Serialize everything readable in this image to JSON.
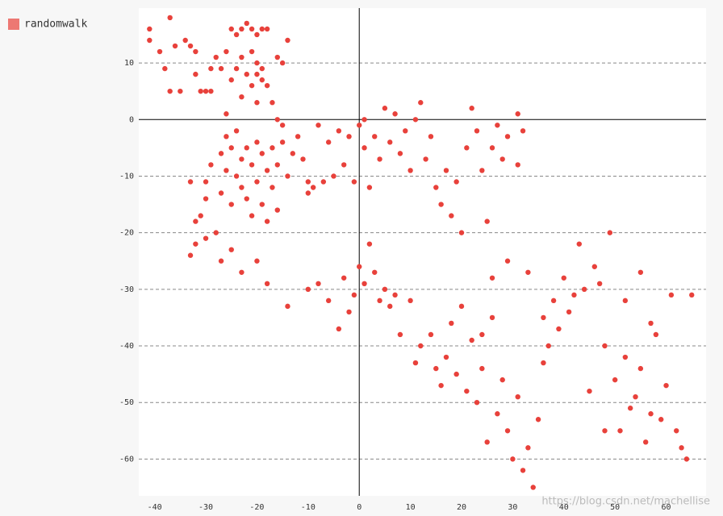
{
  "chart_data": {
    "type": "scatter",
    "watermark": "https://blog.csdn.net/machellise",
    "xlim": [
      -43.1,
      67.8
    ],
    "ylim": [
      -66.5,
      19.7
    ],
    "xticks": [
      -40,
      -30,
      -20,
      -10,
      0,
      10,
      20,
      30,
      40,
      50,
      60
    ],
    "yticks": [
      10,
      0,
      -10,
      -20,
      -30,
      -40,
      -50,
      -60
    ],
    "grid": true,
    "legend": "top-left",
    "x": [
      -41,
      -41,
      -39,
      -38,
      -37,
      -37,
      -36,
      -35,
      -34,
      -33,
      -32,
      -32,
      -31,
      -30,
      -29,
      -29,
      -28,
      -27,
      -26,
      -26,
      -25,
      -25,
      -24,
      -24,
      -23,
      -23,
      -23,
      -22,
      -22,
      -21,
      -21,
      -21,
      -20,
      -20,
      -20,
      -20,
      -19,
      -19,
      -19,
      -18,
      -18,
      -17,
      -16,
      -15,
      -14,
      -16,
      -15,
      -33,
      -32,
      -31,
      -30,
      -30,
      -29,
      -28,
      -27,
      -27,
      -26,
      -26,
      -25,
      -25,
      -24,
      -24,
      -23,
      -23,
      -22,
      -22,
      -21,
      -21,
      -20,
      -20,
      -19,
      -19,
      -18,
      -18,
      -17,
      -17,
      -16,
      -16,
      -15,
      -14,
      -13,
      -12,
      -11,
      -10,
      -10,
      -9,
      -8,
      -7,
      -6,
      -5,
      -4,
      -3,
      -2,
      -1,
      0,
      1,
      1,
      2,
      3,
      4,
      5,
      6,
      7,
      8,
      9,
      10,
      11,
      12,
      13,
      14,
      15,
      16,
      17,
      18,
      19,
      20,
      21,
      22,
      23,
      24,
      25,
      26,
      27,
      28,
      29,
      31,
      31,
      32,
      -33,
      -32,
      -30,
      -27,
      -25,
      -23,
      -20,
      -18,
      -14,
      -10,
      -8,
      -6,
      -4,
      -3,
      -2,
      -1,
      0,
      1,
      2,
      3,
      4,
      5,
      6,
      7,
      8,
      10,
      11,
      12,
      14,
      15,
      16,
      17,
      18,
      19,
      20,
      21,
      22,
      23,
      24,
      25,
      26,
      27,
      28,
      29,
      30,
      31,
      32,
      33,
      34,
      35,
      36,
      37,
      38,
      39,
      40,
      41,
      42,
      43,
      44,
      45,
      46,
      47,
      48,
      49,
      50,
      51,
      52,
      53,
      54,
      55,
      56,
      57,
      58,
      59,
      60,
      61,
      62,
      63,
      64,
      65,
      33,
      36,
      29,
      26,
      24,
      48,
      52,
      55,
      57
    ],
    "series": [
      {
        "name": "randomwalk",
        "color": "#e8413b",
        "values": [
          16,
          14,
          12,
          9,
          18,
          5,
          13,
          5,
          14,
          13,
          12,
          8,
          5,
          5,
          5,
          9,
          11,
          9,
          12,
          1,
          16,
          7,
          15,
          9,
          16,
          11,
          4,
          17,
          8,
          16,
          12,
          6,
          15,
          10,
          8,
          3,
          16,
          9,
          7,
          16,
          6,
          3,
          11,
          10,
          14,
          0,
          -1,
          -11,
          -18,
          -17,
          -14,
          -11,
          -8,
          -20,
          -6,
          -13,
          -3,
          -9,
          -5,
          -15,
          -2,
          -10,
          -7,
          -12,
          -5,
          -14,
          -8,
          -17,
          -4,
          -11,
          -6,
          -15,
          -9,
          -18,
          -5,
          -12,
          -8,
          -16,
          -4,
          -10,
          -6,
          -3,
          -7,
          -11,
          -13,
          -12,
          -1,
          -11,
          -4,
          -10,
          -2,
          -8,
          -3,
          -11,
          -1,
          0,
          -5,
          -12,
          -3,
          -7,
          2,
          -4,
          1,
          -6,
          -2,
          -9,
          0,
          3,
          -7,
          -3,
          -12,
          -15,
          -9,
          -17,
          -11,
          -20,
          -5,
          2,
          -2,
          -9,
          -18,
          -5,
          -1,
          -7,
          -3,
          1,
          -8,
          -2,
          -24,
          -22,
          -21,
          -25,
          -23,
          -27,
          -25,
          -29,
          -33,
          -30,
          -29,
          -32,
          -37,
          -28,
          -34,
          -31,
          -26,
          -29,
          -22,
          -27,
          -32,
          -30,
          -33,
          -31,
          -38,
          -32,
          -43,
          -40,
          -38,
          -44,
          -47,
          -42,
          -36,
          -45,
          -33,
          -48,
          -39,
          -50,
          -44,
          -57,
          -35,
          -52,
          -46,
          -55,
          -60,
          -49,
          -62,
          -58,
          -65,
          -53,
          -43,
          -40,
          -32,
          -37,
          -28,
          -34,
          -31,
          -22,
          -30,
          -48,
          -26,
          -29,
          -40,
          -20,
          -46,
          -55,
          -42,
          -51,
          -49,
          -44,
          -57,
          -52,
          -38,
          -53,
          -47,
          -31,
          -55,
          -58,
          -60,
          -31,
          -27,
          -35,
          -25,
          -28,
          -38,
          -55,
          -32,
          -27,
          -36
        ]
      }
    ]
  }
}
